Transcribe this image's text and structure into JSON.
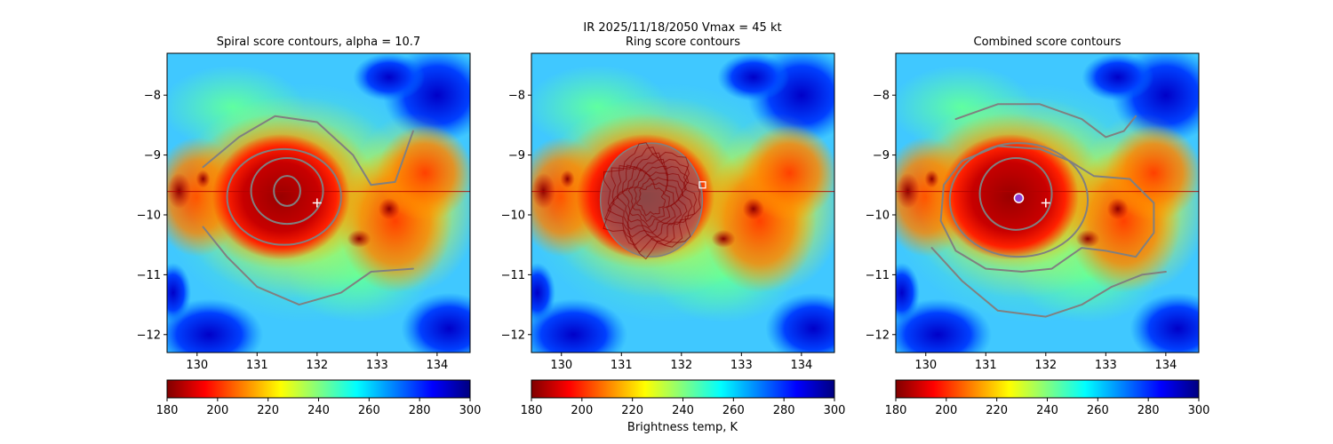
{
  "figure": {
    "suptitle_line1": "IR  2025/11/18/2050    Vmax = 45 kt",
    "colorbar_label": "Brightness temp, K"
  },
  "colors": {
    "contour": "#808080",
    "marker": "#ffffff",
    "center_marker": "#8c3fd6"
  },
  "colormap": {
    "name": "jet",
    "stops": [
      "#800000",
      "#ff0000",
      "#ff8000",
      "#ffff00",
      "#80ff80",
      "#00ffff",
      "#0080ff",
      "#0000ff",
      "#000080"
    ]
  },
  "chart_data": [
    {
      "type": "heatmap",
      "title": "Spiral score contours, alpha = 10.7",
      "xlim": [
        129.5,
        134.55
      ],
      "ylim": [
        -12.3,
        -7.3
      ],
      "xticks": [
        "130",
        "131",
        "132",
        "133",
        "134"
      ],
      "yticks": [
        "−8",
        "−9",
        "−10",
        "−11",
        "−12"
      ],
      "colorbar": {
        "vmin": 180,
        "vmax": 300,
        "ticks": [
          "180",
          "200",
          "220",
          "240",
          "260",
          "280",
          "300"
        ]
      },
      "eye_center": {
        "lon": 131.4,
        "lat": -9.7
      },
      "markers": [
        {
          "symbol": "+",
          "lon": 132.0,
          "lat": -9.8
        }
      ],
      "contours": [
        {
          "cx": 131.5,
          "cy": -9.6,
          "rx": 0.22,
          "ry": 0.25
        },
        {
          "cx": 131.5,
          "cy": -9.6,
          "rx": 0.6,
          "ry": 0.55
        },
        {
          "cx": 131.45,
          "cy": -9.7,
          "rx": 0.95,
          "ry": 0.8
        },
        {
          "points": [
            [
              130.1,
              -9.2
            ],
            [
              130.7,
              -8.7
            ],
            [
              131.3,
              -8.35
            ],
            [
              132.0,
              -8.45
            ],
            [
              132.6,
              -9.0
            ],
            [
              132.9,
              -9.5
            ],
            [
              133.3,
              -9.45
            ],
            [
              133.6,
              -8.6
            ]
          ]
        },
        {
          "points": [
            [
              130.1,
              -10.2
            ],
            [
              130.5,
              -10.7
            ],
            [
              131.0,
              -11.2
            ],
            [
              131.7,
              -11.5
            ],
            [
              132.4,
              -11.3
            ],
            [
              132.9,
              -10.95
            ],
            [
              133.6,
              -10.9
            ]
          ]
        }
      ]
    },
    {
      "type": "heatmap",
      "title": "Ring score contours",
      "xlim": [
        129.5,
        134.55
      ],
      "ylim": [
        -12.3,
        -7.3
      ],
      "xticks": [
        "130",
        "131",
        "132",
        "133",
        "134"
      ],
      "yticks": [
        "−8",
        "−9",
        "−10",
        "−11",
        "−12"
      ],
      "colorbar": {
        "vmin": 180,
        "vmax": 300,
        "ticks": [
          "180",
          "200",
          "220",
          "240",
          "260",
          "280",
          "300"
        ]
      },
      "eye_center": {
        "lon": 131.4,
        "lat": -9.7
      },
      "markers": [
        {
          "symbol": "square",
          "lon": 132.35,
          "lat": -9.5
        }
      ],
      "contours": [
        {
          "type": "ring-blob",
          "cx": 131.5,
          "cy": -9.75,
          "rx": 0.85,
          "ry": 0.95
        }
      ]
    },
    {
      "type": "heatmap",
      "title": "Combined score contours",
      "xlim": [
        129.5,
        134.55
      ],
      "ylim": [
        -12.3,
        -7.3
      ],
      "xticks": [
        "130",
        "131",
        "132",
        "133",
        "134"
      ],
      "yticks": [
        "−8",
        "−9",
        "−10",
        "−11",
        "−12"
      ],
      "colorbar": {
        "vmin": 180,
        "vmax": 300,
        "ticks": [
          "180",
          "200",
          "220",
          "240",
          "260",
          "280",
          "300"
        ]
      },
      "eye_center": {
        "lon": 131.4,
        "lat": -9.7
      },
      "markers": [
        {
          "symbol": "+",
          "lon": 132.0,
          "lat": -9.8
        },
        {
          "symbol": "circle",
          "lon": 131.55,
          "lat": -9.72
        }
      ],
      "contours": [
        {
          "cx": 131.55,
          "cy": -9.72,
          "rx": 0.06,
          "ry": 0.06
        },
        {
          "cx": 131.5,
          "cy": -9.65,
          "rx": 0.6,
          "ry": 0.6
        },
        {
          "cx": 131.55,
          "cy": -9.75,
          "rx": 1.15,
          "ry": 0.95
        },
        {
          "points": [
            [
              130.5,
              -8.4
            ],
            [
              131.2,
              -8.15
            ],
            [
              131.9,
              -8.15
            ],
            [
              132.6,
              -8.4
            ],
            [
              133.0,
              -8.7
            ],
            [
              133.3,
              -8.6
            ],
            [
              133.5,
              -8.35
            ]
          ]
        },
        {
          "points": [
            [
              130.6,
              -9.1
            ],
            [
              130.3,
              -9.5
            ],
            [
              130.25,
              -10.1
            ],
            [
              130.5,
              -10.6
            ],
            [
              131.0,
              -10.9
            ],
            [
              131.6,
              -10.95
            ],
            [
              132.1,
              -10.9
            ],
            [
              132.6,
              -10.55
            ],
            [
              133.0,
              -10.6
            ],
            [
              133.5,
              -10.7
            ],
            [
              133.8,
              -10.3
            ],
            [
              133.8,
              -9.8
            ],
            [
              133.4,
              -9.4
            ],
            [
              132.8,
              -9.35
            ],
            [
              132.4,
              -9.1
            ],
            [
              131.9,
              -8.9
            ],
            [
              131.2,
              -8.85
            ],
            [
              130.6,
              -9.1
            ]
          ]
        },
        {
          "points": [
            [
              130.1,
              -10.55
            ],
            [
              130.6,
              -11.1
            ],
            [
              131.2,
              -11.6
            ],
            [
              132.0,
              -11.7
            ],
            [
              132.6,
              -11.5
            ],
            [
              133.1,
              -11.2
            ],
            [
              133.6,
              -11.0
            ],
            [
              134.0,
              -10.95
            ]
          ]
        }
      ]
    }
  ]
}
